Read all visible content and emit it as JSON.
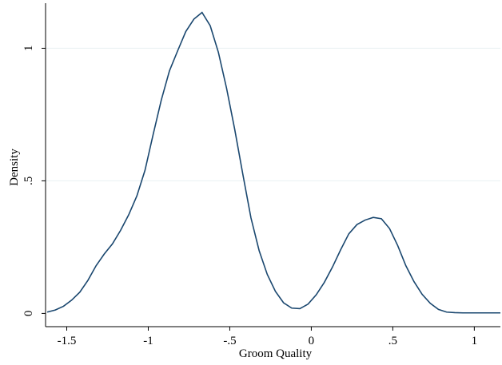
{
  "chart_data": {
    "type": "line",
    "xlabel": "Groom Quality",
    "ylabel": "Density",
    "xlim": [
      -1.63,
      1.16
    ],
    "ylim": [
      -0.05,
      1.17
    ],
    "xticks": [
      {
        "value": -1.5,
        "label": "-1.5"
      },
      {
        "value": -1,
        "label": "-1"
      },
      {
        "value": -0.5,
        "label": "-.5"
      },
      {
        "value": 0,
        "label": "0"
      },
      {
        "value": 0.5,
        "label": ".5"
      },
      {
        "value": 1,
        "label": "1"
      }
    ],
    "yticks": [
      {
        "value": 0,
        "label": "0"
      },
      {
        "value": 0.5,
        "label": ".5"
      },
      {
        "value": 1,
        "label": "1"
      }
    ],
    "grid": true,
    "line_color": "#1a476f",
    "grid_color": "#eaf0f2",
    "series": [
      {
        "x": [
          -1.62,
          -1.57,
          -1.52,
          -1.47,
          -1.42,
          -1.37,
          -1.32,
          -1.27,
          -1.22,
          -1.17,
          -1.12,
          -1.07,
          -1.02,
          -0.97,
          -0.92,
          -0.87,
          -0.82,
          -0.77,
          -0.72,
          -0.67,
          -0.62,
          -0.57,
          -0.52,
          -0.47,
          -0.42,
          -0.37,
          -0.32,
          -0.27,
          -0.22,
          -0.17,
          -0.12,
          -0.07,
          -0.02,
          0.03,
          0.08,
          0.13,
          0.18,
          0.23,
          0.28,
          0.33,
          0.38,
          0.43,
          0.48,
          0.53,
          0.58,
          0.63,
          0.68,
          0.73,
          0.78,
          0.83,
          0.88,
          0.93,
          0.98,
          1.03,
          1.08,
          1.13,
          1.16
        ],
        "y": [
          0.005,
          0.013,
          0.027,
          0.05,
          0.08,
          0.125,
          0.18,
          0.224,
          0.262,
          0.313,
          0.372,
          0.443,
          0.54,
          0.675,
          0.805,
          0.915,
          0.99,
          1.063,
          1.11,
          1.135,
          1.085,
          0.985,
          0.85,
          0.695,
          0.525,
          0.36,
          0.237,
          0.147,
          0.083,
          0.04,
          0.02,
          0.018,
          0.035,
          0.07,
          0.117,
          0.175,
          0.24,
          0.3,
          0.335,
          0.352,
          0.362,
          0.357,
          0.32,
          0.256,
          0.18,
          0.12,
          0.072,
          0.038,
          0.015,
          0.005,
          0.003,
          0.002,
          0.002,
          0.002,
          0.002,
          0.002,
          0.002
        ]
      }
    ]
  }
}
